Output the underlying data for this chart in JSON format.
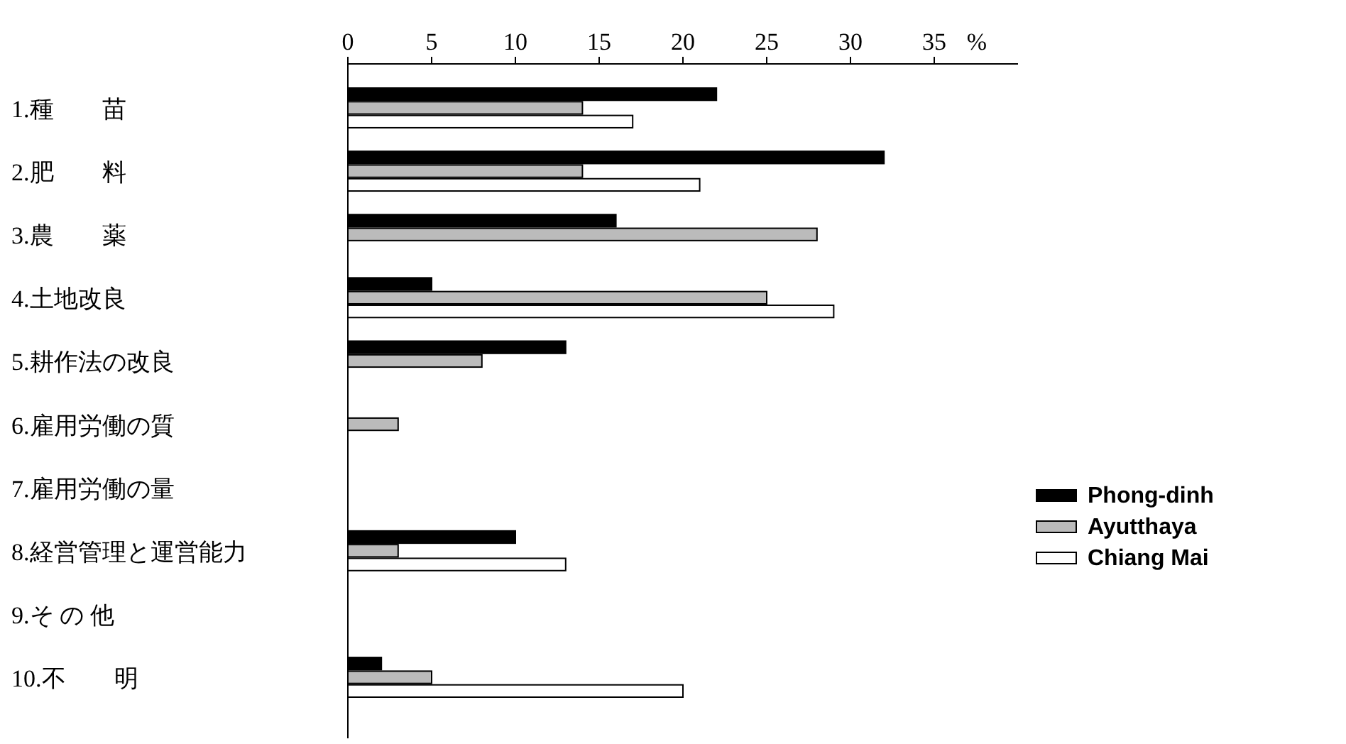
{
  "chart_data": {
    "type": "bar",
    "orientation": "horizontal",
    "xlabel": "%",
    "categories": [
      "1.種　　苗",
      "2.肥　　料",
      "3.農　　薬",
      "4.土地改良",
      "5.耕作法の改良",
      "6.雇用労働の質",
      "7.雇用労働の量",
      "8.経営管理と運営能力",
      "9.そ の 他",
      "10.不　　明"
    ],
    "series": [
      {
        "name": "Phong-dinh",
        "color": "#000000",
        "values": [
          22,
          32,
          16,
          5,
          13,
          0,
          0,
          10,
          0,
          2
        ]
      },
      {
        "name": "Ayutthaya",
        "color": "#bbbbbb",
        "values": [
          14,
          14,
          28,
          25,
          8,
          3,
          0,
          3,
          0,
          5
        ]
      },
      {
        "name": "Chiang Mai",
        "color": "#ffffff",
        "values": [
          17,
          21,
          0,
          29,
          0,
          0,
          0,
          13,
          0,
          20
        ]
      }
    ],
    "xlim": [
      0,
      40
    ],
    "xticks": [
      0,
      5,
      10,
      15,
      20,
      25,
      30,
      35
    ],
    "grid": false,
    "legend": "right"
  }
}
